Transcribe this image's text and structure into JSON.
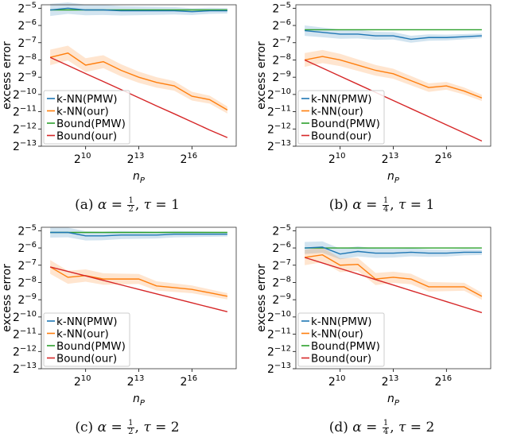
{
  "chart_data": [
    {
      "type": "line",
      "id": "a",
      "caption": {
        "label": "(a)",
        "alpha_num": "1",
        "alpha_den": "2",
        "tau": "1"
      },
      "xlabel": "n_P",
      "ylabel": "excess error",
      "x": [
        8,
        9,
        10,
        11,
        12,
        13,
        14,
        15,
        16,
        17,
        18
      ],
      "xticks": [
        10,
        13,
        16
      ],
      "yticks": [
        -5,
        -6,
        -7,
        -8,
        -9,
        -10,
        -11,
        -12,
        -13
      ],
      "ylim": [
        -13,
        -4.8
      ],
      "xlim": [
        7.5,
        18.5
      ],
      "scale": "log2",
      "series": [
        {
          "name": "k-NN(PMW)",
          "color": "#1f77b4",
          "spread": 0.35,
          "values": [
            -5.1,
            -5.0,
            -5.1,
            -5.1,
            -5.15,
            -5.15,
            -5.15,
            -5.15,
            -5.2,
            -5.15,
            -5.15
          ]
        },
        {
          "name": "k-NN(our)",
          "color": "#ff7f0e",
          "spread": 0.45,
          "values": [
            -7.85,
            -7.6,
            -8.3,
            -8.1,
            -8.6,
            -9.0,
            -9.3,
            -9.5,
            -10.1,
            -10.3,
            -10.9
          ]
        },
        {
          "name": "Bound(PMW)",
          "color": "#2ca02c",
          "spread": 0,
          "values": [
            -5.1,
            -5.1,
            -5.1,
            -5.1,
            -5.1,
            -5.1,
            -5.1,
            -5.1,
            -5.1,
            -5.1,
            -5.1
          ]
        },
        {
          "name": "Bound(our)",
          "color": "#d62728",
          "spread": 0,
          "values": [
            -7.85,
            -8.32,
            -8.79,
            -9.25,
            -9.72,
            -10.19,
            -10.66,
            -11.12,
            -11.59,
            -12.06,
            -12.5
          ]
        }
      ],
      "legend": "lower-left"
    },
    {
      "type": "line",
      "id": "b",
      "caption": {
        "label": "(b)",
        "alpha_num": "1",
        "alpha_den": "4",
        "tau": "1"
      },
      "xlabel": "n_P",
      "ylabel": "excess error",
      "x": [
        8,
        9,
        10,
        11,
        12,
        13,
        14,
        15,
        16,
        17,
        18
      ],
      "xticks": [
        10,
        13,
        16
      ],
      "yticks": [
        -5,
        -6,
        -7,
        -8,
        -9,
        -10,
        -11,
        -12,
        -13
      ],
      "ylim": [
        -13,
        -4.8
      ],
      "xlim": [
        7.5,
        18.5
      ],
      "scale": "log2",
      "series": [
        {
          "name": "k-NN(PMW)",
          "color": "#1f77b4",
          "spread": 0.3,
          "values": [
            -6.3,
            -6.4,
            -6.5,
            -6.5,
            -6.6,
            -6.6,
            -6.8,
            -6.7,
            -6.7,
            -6.65,
            -6.6
          ]
        },
        {
          "name": "k-NN(our)",
          "color": "#ff7f0e",
          "spread": 0.4,
          "values": [
            -8.0,
            -7.8,
            -8.0,
            -8.3,
            -8.6,
            -8.8,
            -9.2,
            -9.6,
            -9.5,
            -9.8,
            -10.2
          ]
        },
        {
          "name": "Bound(PMW)",
          "color": "#2ca02c",
          "spread": 0,
          "values": [
            -6.25,
            -6.25,
            -6.25,
            -6.25,
            -6.25,
            -6.25,
            -6.25,
            -6.25,
            -6.25,
            -6.25,
            -6.25
          ]
        },
        {
          "name": "Bound(our)",
          "color": "#d62728",
          "spread": 0,
          "values": [
            -8.0,
            -8.47,
            -8.94,
            -9.41,
            -9.88,
            -10.35,
            -10.82,
            -11.29,
            -11.76,
            -12.23,
            -12.7
          ]
        }
      ],
      "legend": "lower-left"
    },
    {
      "type": "line",
      "id": "c",
      "caption": {
        "label": "(c)",
        "alpha_num": "1",
        "alpha_den": "2",
        "tau": "2"
      },
      "xlabel": "n_P",
      "ylabel": "excess error",
      "x": [
        8,
        9,
        10,
        11,
        12,
        13,
        14,
        15,
        16,
        17,
        18
      ],
      "xticks": [
        10,
        13,
        16
      ],
      "yticks": [
        -5,
        -6,
        -7,
        -8,
        -9,
        -10,
        -11,
        -12,
        -13
      ],
      "ylim": [
        -13,
        -4.8
      ],
      "xlim": [
        7.5,
        18.5
      ],
      "scale": "log2",
      "series": [
        {
          "name": "k-NN(PMW)",
          "color": "#1f77b4",
          "spread": 0.3,
          "values": [
            -5.1,
            -5.1,
            -5.3,
            -5.3,
            -5.25,
            -5.25,
            -5.25,
            -5.2,
            -5.2,
            -5.2,
            -5.2
          ]
        },
        {
          "name": "k-NN(our)",
          "color": "#ff7f0e",
          "spread": 0.4,
          "values": [
            -7.1,
            -7.7,
            -7.6,
            -7.8,
            -7.8,
            -7.8,
            -8.2,
            -8.3,
            -8.4,
            -8.6,
            -8.8
          ]
        },
        {
          "name": "Bound(PMW)",
          "color": "#2ca02c",
          "spread": 0,
          "values": [
            -5.1,
            -5.1,
            -5.1,
            -5.1,
            -5.1,
            -5.1,
            -5.1,
            -5.1,
            -5.1,
            -5.1,
            -5.1
          ]
        },
        {
          "name": "Bound(our)",
          "color": "#d62728",
          "spread": 0,
          "values": [
            -7.1,
            -7.36,
            -7.62,
            -7.88,
            -8.14,
            -8.4,
            -8.66,
            -8.92,
            -9.18,
            -9.44,
            -9.7
          ]
        }
      ],
      "legend": "lower-left"
    },
    {
      "type": "line",
      "id": "d",
      "caption": {
        "label": "(d)",
        "alpha_num": "1",
        "alpha_den": "4",
        "tau": "2"
      },
      "xlabel": "n_P",
      "ylabel": "excess error",
      "x": [
        8,
        9,
        10,
        11,
        12,
        13,
        14,
        15,
        16,
        17,
        18
      ],
      "xticks": [
        10,
        13,
        16
      ],
      "yticks": [
        -5,
        -6,
        -7,
        -8,
        -9,
        -10,
        -11,
        -12,
        -13
      ],
      "ylim": [
        -13,
        -4.8
      ],
      "xlim": [
        7.5,
        18.5
      ],
      "scale": "log2",
      "series": [
        {
          "name": "k-NN(PMW)",
          "color": "#1f77b4",
          "spread": 0.35,
          "values": [
            -6.0,
            -5.95,
            -6.35,
            -6.2,
            -6.3,
            -6.3,
            -6.25,
            -6.3,
            -6.3,
            -6.25,
            -6.25
          ]
        },
        {
          "name": "k-NN(our)",
          "color": "#ff7f0e",
          "spread": 0.45,
          "values": [
            -6.55,
            -6.4,
            -7.0,
            -6.95,
            -7.8,
            -7.7,
            -7.8,
            -8.25,
            -8.25,
            -8.25,
            -8.8
          ]
        },
        {
          "name": "Bound(PMW)",
          "color": "#2ca02c",
          "spread": 0,
          "values": [
            -6.0,
            -6.0,
            -6.0,
            -6.0,
            -6.0,
            -6.0,
            -6.0,
            -6.0,
            -6.0,
            -6.0,
            -6.0
          ]
        },
        {
          "name": "Bound(our)",
          "color": "#d62728",
          "spread": 0,
          "values": [
            -6.55,
            -6.87,
            -7.19,
            -7.51,
            -7.83,
            -8.15,
            -8.47,
            -8.79,
            -9.11,
            -9.43,
            -9.75
          ]
        }
      ],
      "legend": "lower-left"
    }
  ]
}
